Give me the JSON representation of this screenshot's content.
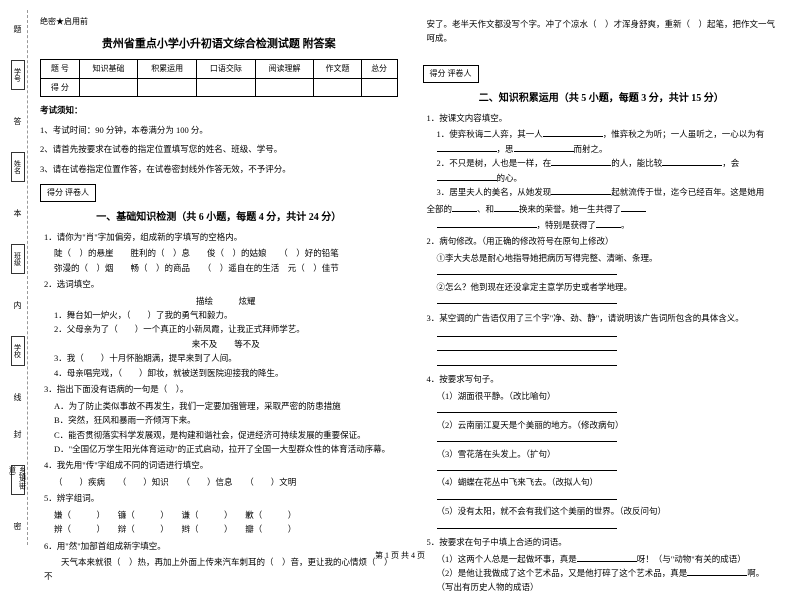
{
  "binding": {
    "labels": [
      "学号",
      "姓名",
      "班级",
      "学校",
      "乡镇(街道)"
    ],
    "sideMarks": [
      "题",
      "答",
      "本",
      "内",
      "线",
      "封",
      "密"
    ]
  },
  "seal": "绝密★启用前",
  "title": "贵州省重点小学小升初语文综合检测试题 附答案",
  "scoreTable": {
    "headers": [
      "题  号",
      "知识基础",
      "积累运用",
      "口语交际",
      "阅读理解",
      "作文题",
      "总分"
    ],
    "row2": "得  分"
  },
  "notice": {
    "title": "考试须知：",
    "items": [
      "1、考试时间：90 分钟，本卷满分为 100 分。",
      "2、请首先按要求在试卷的指定位置填写您的姓名、班级、学号。",
      "3、请在试卷指定位置作答，在试卷密封线外作答无效，不予评分。"
    ]
  },
  "gradeLabel": "得分   评卷人",
  "sec1": {
    "title": "一、基础知识检测（共 6 小题，每题 4 分，共计 24 分）",
    "q1": "1．请你为\"肖\"字加偏旁，组成新的字填写的空格内。",
    "q1a": "陡（　）的悬崖　　胜利的（　）息　　俊（　）的姑娘　　（　）好的铅笔",
    "q1b": "弥漫的（　）烟　　畅（　）的商品　　（　）遥自在的生活　元（　）佳节",
    "q2": "2．选词填空。",
    "q2w": "描绘　　　炫耀",
    "q2a": "1．舞台如一炉火，（　　）了我的勇气和毅力。",
    "q2b": "2．父母亲为了（　　）一个真正的小新凤霞，让我正式拜师学艺。",
    "q2w2": "来不及　　等不及",
    "q2c": "3．我（　　）十月怀胎期满，提早来到了人间。",
    "q2d": "4．母亲唱完戏，（　　）卸妆，就被送到医院迎接我的降生。",
    "q3": "3．指出下面没有语病的一句是（　）。",
    "q3a": "A．为了防止类似事故不再发生，我们一定要加强管理，采取严密的防患措施",
    "q3b": "B．突然，狂风和暴雨一齐倾泻下来。",
    "q3c": "C．能否贯彻落实科学发展观，是构建和谐社会，促进经济可持续发展的重要保证。",
    "q3d": "D．\"全国亿万学生阳光体育运动\"的正式启动，拉开了全国一大型群众性的体育活动序幕。",
    "q4": "4．我先用\"传\"字组成不同的词语进行填空。",
    "q4a": "（　　）疾病　　（　　）知识　　（　　）信息　　（　　）文明",
    "q5": "5．辨字组词。",
    "q5a": "嫌（　　　）　　镰（　　　）　　谦（　　　）　　歉（　　　）",
    "q5b": "辨（　　　）　　辩（　　　）　　辫（　　　）　　瓣（　　　）",
    "q6": "6．用\"然\"加部首组成新字填空。",
    "q6a": "　　天气本来就很（　）热，再加上外面上传来汽车刺耳的（　）音，更让我的心情烦（　）不"
  },
  "col2": {
    "cont": "安了。老半天作文都没写个字。冲了个凉水（　）才浑身舒爽，重新（　）起笔，把作文一气呵成。",
    "sec2": {
      "title": "二、知识积累运用（共 5 小题，每题 3 分，共计 15 分）",
      "q1": "1．按课文内容填空。",
      "q1a": "1．使弈秋诲二人弈，其一人",
      "q1b": "，惟弈秋之为听；一人虽听之，一心以为有",
      "q1c": "，思",
      "q1d": "而射之。",
      "q1e": "2．不只是树，人也是一样，在",
      "q1f": "的人，能比较",
      "q1g": "，会",
      "q1h": "的心。",
      "q1i": "3．居里夫人的美名，从她发现",
      "q1j": "起就流传于世，迄今已经百年。这是她用",
      "q1k": "全部的",
      "q1l": "、和",
      "q1m": "换来的荣誉。她一生共得了",
      "q1n": "，特别是获得了",
      "q1o": "。",
      "q2": "2．病句修改。（用正确的修改符号在原句上修改）",
      "q2a": "①李大夫总是耐心地指导她把病历写得完整、清晰、条理。",
      "q2b": "②怎么？他到现在还没拿定主意学历史或者学地理。",
      "q3": "3．某空调的广告语仅用了三个字\"净、劲、静\"，请说明该广告词所包含的具体含义。",
      "q4": "4．按要求写句子。",
      "q4a": "（1）湖面很平静。（改比喻句）",
      "q4b": "（2）云南丽江夏天是个美丽的地方。（修改病句）",
      "q4c": "（3）雪花落在头发上。（扩句）",
      "q4d": "（4）蝴蝶在花丛中飞来飞去。（改拟人句）",
      "q4e": "（5）没有太阳，就不会有我们这个美丽的世界。（改反问句）",
      "q5": "5．按要求在句子中填上合适的词语。",
      "q5a": "（1）这两个人总是一起做坏事，真是",
      "q5b": "呀！（与\"动物\"有关的成语）",
      "q5c": "（2）是他让我做成了这个艺术品，又是他打碎了这个艺术品，真是",
      "q5d": "啊。",
      "q5e": "（写出有历史人物的成语）"
    }
  },
  "footer": "第 1 页 共 4 页"
}
